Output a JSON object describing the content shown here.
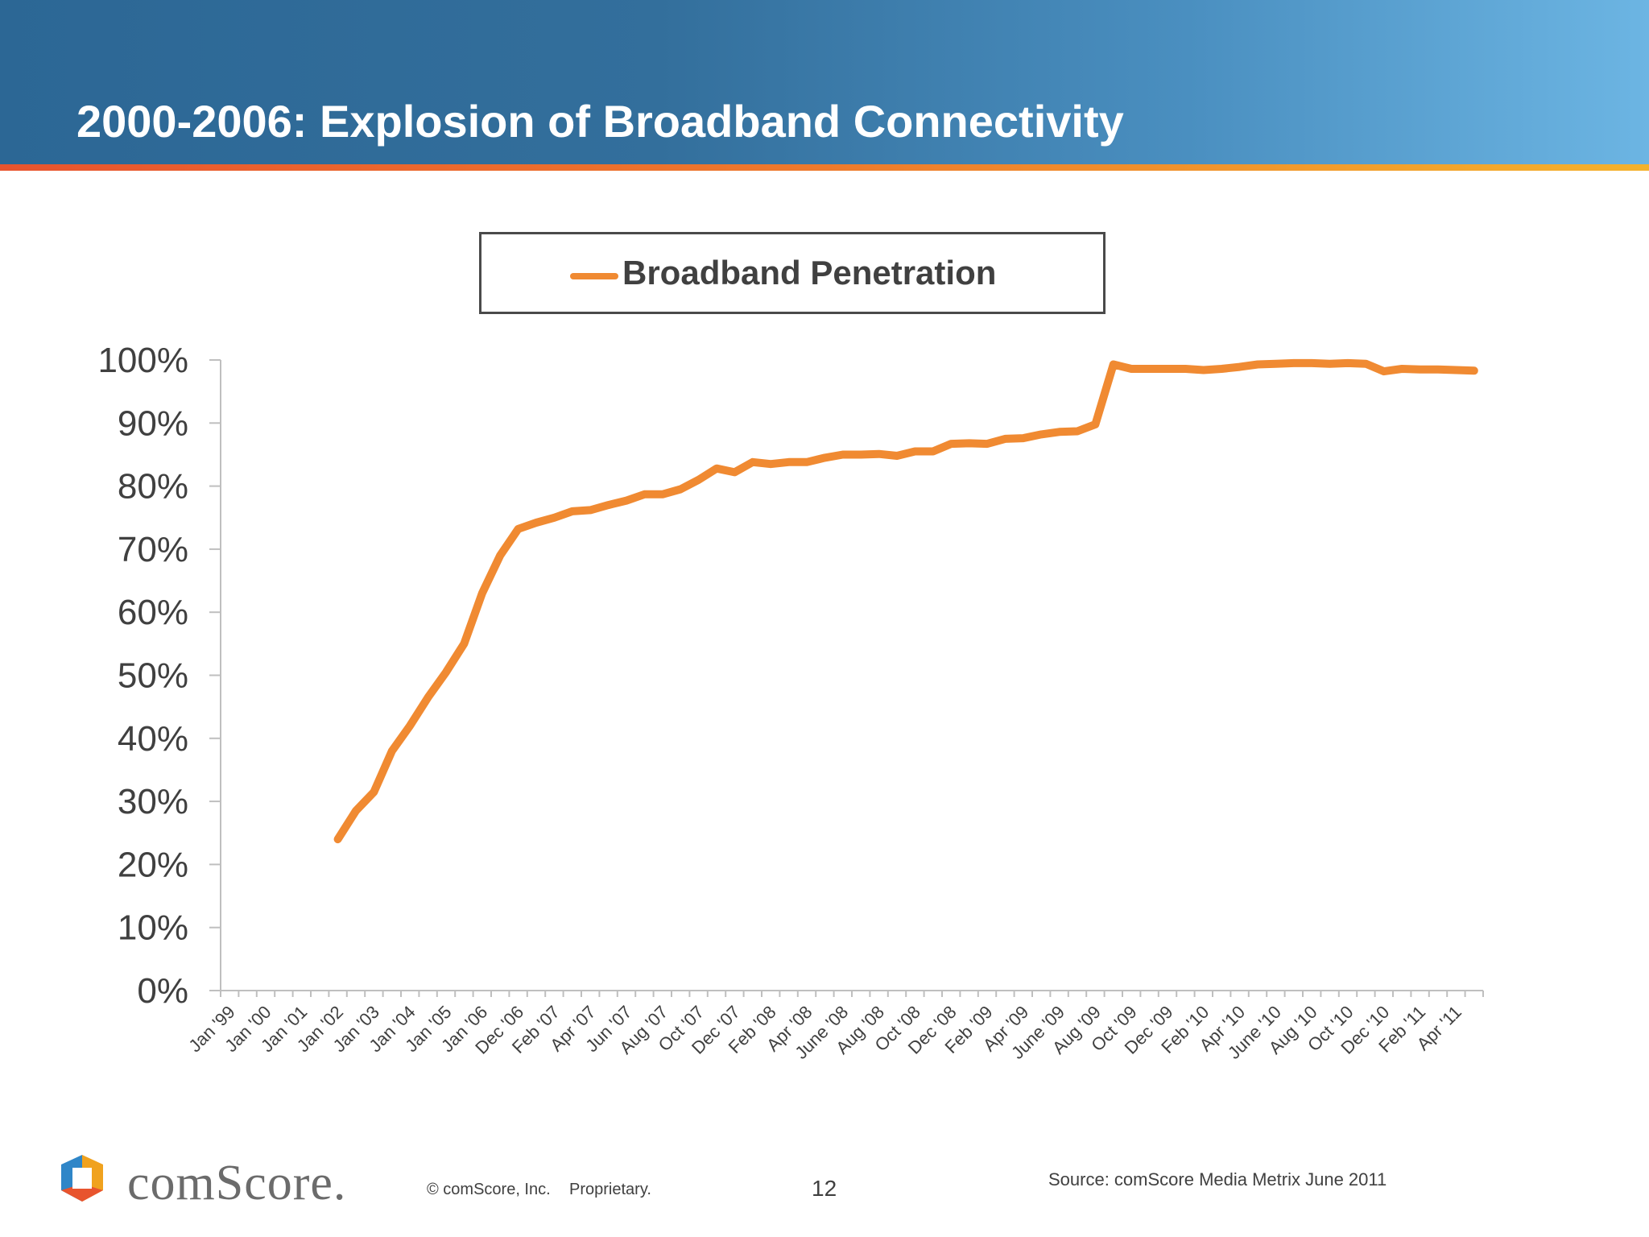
{
  "slide": {
    "title": "2000-2006: Explosion of Broadband Connectivity",
    "page_number": "12",
    "copyright": "© comScore, Inc.",
    "proprietary": "Proprietary.",
    "source": "Source:  comScore Media Metrix June 2011",
    "brand": "comScore."
  },
  "colors": {
    "header_start": "#2c6795",
    "header_end": "#6cb5e3",
    "accent_stripe": "#ee7a2c",
    "series": "#f08a32",
    "axis": "#bfbfbf",
    "text": "#404040"
  },
  "chart_data": {
    "type": "line",
    "title": "",
    "xlabel": "",
    "ylabel": "",
    "ylim": [
      0,
      1
    ],
    "y_format": "percent",
    "grid": false,
    "legend_position": "top-center",
    "yticks": [
      0,
      0.1,
      0.2,
      0.3,
      0.4,
      0.5,
      0.6,
      0.7,
      0.8,
      0.9,
      1.0
    ],
    "ytick_labels": [
      "0%",
      "10%",
      "20%",
      "30%",
      "40%",
      "50%",
      "60%",
      "70%",
      "80%",
      "90%",
      "100%"
    ],
    "categories": [
      "Jan '99",
      "",
      "Jan '00",
      "",
      "Jan '01",
      "",
      "Jan '02",
      "",
      "Jan '03",
      "",
      "Jan '04",
      "",
      "Jan '05",
      "",
      "Jan '06",
      "",
      "Dec '06",
      "",
      "Feb '07",
      "",
      "Apr '07",
      "",
      "Jun '07",
      "",
      "Aug '07",
      "",
      "Oct '07",
      "",
      "Dec '07",
      "",
      "Feb '08",
      "",
      "Apr '08",
      "",
      "June '08",
      "",
      "Aug '08",
      "",
      "Oct '08",
      "",
      "Dec '08",
      "",
      "Feb '09",
      "",
      "Apr '09",
      "",
      "June '09",
      "",
      "Aug '09",
      "",
      "Oct '09",
      "",
      "Dec '09",
      "",
      "Feb '10",
      "",
      "Apr '10",
      "",
      "June '10",
      "",
      "Aug '10",
      "",
      "Oct '10",
      "",
      "Dec '10",
      "",
      "Feb '11",
      "",
      "Apr '11",
      ""
    ],
    "series": [
      {
        "name": "Broadband Penetration",
        "values": [
          null,
          null,
          null,
          null,
          null,
          null,
          0.24,
          0.285,
          0.315,
          0.38,
          0.42,
          0.465,
          0.505,
          0.55,
          0.63,
          0.69,
          0.732,
          0.742,
          0.75,
          0.76,
          0.762,
          0.77,
          0.777,
          0.787,
          0.787,
          0.795,
          0.81,
          0.828,
          0.822,
          0.838,
          0.835,
          0.838,
          0.838,
          0.845,
          0.85,
          0.85,
          0.851,
          0.848,
          0.855,
          0.855,
          0.867,
          0.868,
          0.867,
          0.875,
          0.876,
          0.882,
          0.886,
          0.887,
          0.898,
          0.993,
          0.986,
          0.986,
          0.986,
          0.986,
          0.984,
          0.986,
          0.989,
          0.993,
          0.994,
          0.995,
          0.995,
          0.994,
          0.995,
          0.994,
          0.982,
          0.986,
          0.985,
          0.985,
          0.984,
          0.983
        ]
      }
    ]
  }
}
